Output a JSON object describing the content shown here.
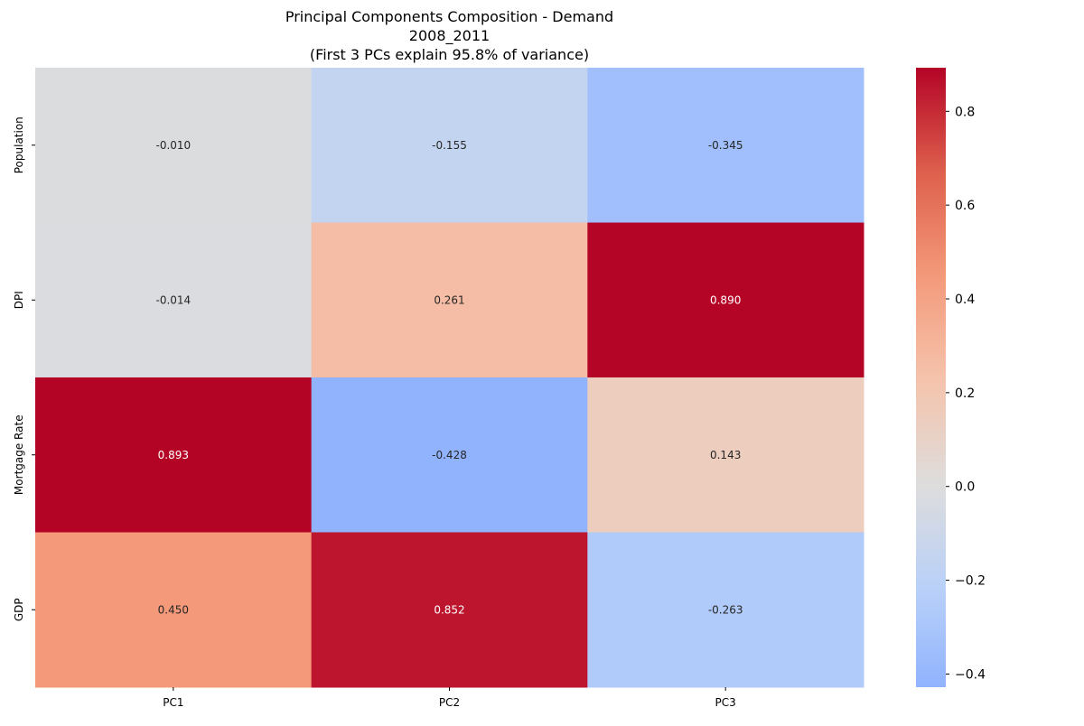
{
  "chart_data": {
    "type": "heatmap",
    "title": [
      "Principal Components Composition - Demand",
      "2008_2011",
      "(First 3 PCs explain 95.8% of variance)"
    ],
    "rows": [
      "Population",
      "DPI",
      "Mortgage Rate",
      "GDP"
    ],
    "columns": [
      "PC1",
      "PC2",
      "PC3"
    ],
    "values": [
      [
        -0.01,
        -0.155,
        -0.345
      ],
      [
        -0.014,
        0.261,
        0.89
      ],
      [
        0.893,
        -0.428,
        0.143
      ],
      [
        0.45,
        0.852,
        -0.263
      ]
    ],
    "value_labels": [
      [
        "-0.010",
        "-0.155",
        "-0.345"
      ],
      [
        "-0.014",
        "0.261",
        "0.890"
      ],
      [
        "0.893",
        "-0.428",
        "0.143"
      ],
      [
        "0.450",
        "0.852",
        "-0.263"
      ]
    ],
    "colormap": "coolwarm",
    "color_center": 0,
    "color_range": [
      -0.428,
      0.893
    ],
    "colorbar_ticks": [
      -0.4,
      -0.2,
      0.0,
      0.2,
      0.4,
      0.6,
      0.8
    ],
    "colorbar_tick_labels": [
      "−0.4",
      "−0.2",
      "0.0",
      "0.2",
      "0.4",
      "0.6",
      "0.8"
    ]
  }
}
